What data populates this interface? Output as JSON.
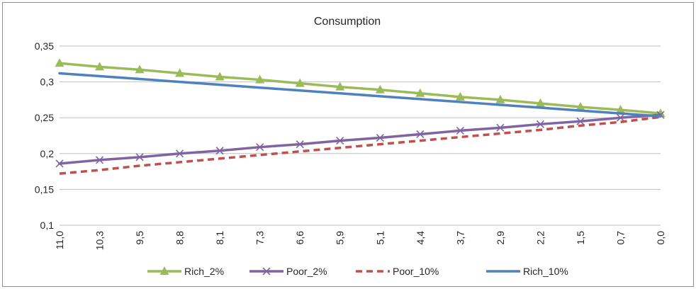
{
  "chart_data": {
    "type": "line",
    "title": "Consumption",
    "xlabel": "",
    "ylabel": "",
    "categories": [
      "11,0",
      "10,3",
      "9,5",
      "8,8",
      "8,1",
      "7,3",
      "6,6",
      "5,9",
      "5,1",
      "4,4",
      "3,7",
      "2,9",
      "2,2",
      "1,5",
      "0,7",
      "0,0"
    ],
    "ylim": [
      0.1,
      0.35
    ],
    "yticks": [
      0.1,
      0.15,
      0.2,
      0.25,
      0.3,
      0.35
    ],
    "ytick_labels": [
      "0,1",
      "0,15",
      "0,2",
      "0,25",
      "0,3",
      "0,35"
    ],
    "grid": true,
    "legend_position": "bottom",
    "series": [
      {
        "name": "Rich_2%",
        "color": "#9bbb59",
        "marker": "triangle",
        "dash": "solid",
        "values": [
          0.326,
          0.321,
          0.317,
          0.312,
          0.307,
          0.303,
          0.298,
          0.293,
          0.289,
          0.284,
          0.279,
          0.275,
          0.27,
          0.265,
          0.261,
          0.256
        ]
      },
      {
        "name": "Poor_2%",
        "color": "#8064a2",
        "marker": "x",
        "dash": "solid",
        "values": [
          0.186,
          0.191,
          0.195,
          0.2,
          0.204,
          0.209,
          0.213,
          0.218,
          0.222,
          0.227,
          0.232,
          0.236,
          0.241,
          0.245,
          0.25,
          0.254
        ]
      },
      {
        "name": "Poor_10%",
        "color": "#c0504d",
        "marker": "none",
        "dash": "dashed",
        "values": [
          0.172,
          0.177,
          0.183,
          0.188,
          0.193,
          0.198,
          0.203,
          0.208,
          0.213,
          0.218,
          0.223,
          0.228,
          0.233,
          0.239,
          0.244,
          0.251
        ]
      },
      {
        "name": "Rich_10%",
        "color": "#4f81bd",
        "marker": "none",
        "dash": "solid",
        "values": [
          0.312,
          0.308,
          0.304,
          0.3,
          0.296,
          0.292,
          0.288,
          0.284,
          0.28,
          0.276,
          0.272,
          0.268,
          0.264,
          0.26,
          0.256,
          0.252
        ]
      }
    ]
  }
}
